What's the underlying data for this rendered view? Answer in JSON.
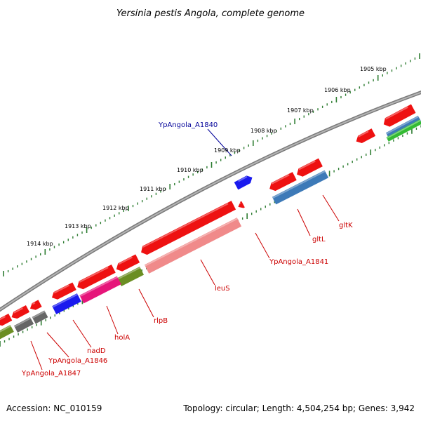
{
  "title": "Yersinia pestis Angola, complete genome",
  "footer": {
    "accession": "Accession: NC_010159",
    "summary": "Topology: circular; Length: 4,504,254 bp; Genes: 3,942"
  },
  "colors": {
    "backbone": "#8a8a8a",
    "tick": "#2e7d32",
    "label_reverse": "#cc0000",
    "label_forward": "#000099",
    "leader": "#cc0000"
  },
  "kbp_ticks": [
    "1905 kbp",
    "1906 kbp",
    "1907 kbp",
    "1908 kbp",
    "1909 kbp",
    "1910 kbp",
    "1911 kbp",
    "1912 kbp",
    "1913 kbp",
    "1914 kbp"
  ],
  "gene_labels": [
    {
      "text": "YpAngola_A1840",
      "strand": "forward"
    },
    {
      "text": "gltK",
      "strand": "reverse"
    },
    {
      "text": "gltL",
      "strand": "reverse"
    },
    {
      "text": "YpAngola_A1841",
      "strand": "reverse"
    },
    {
      "text": "leuS",
      "strand": "reverse"
    },
    {
      "text": "rlpB",
      "strand": "reverse"
    },
    {
      "text": "holA",
      "strand": "reverse"
    },
    {
      "text": "nadD",
      "strand": "reverse"
    },
    {
      "text": "YpAngola_A1846",
      "strand": "reverse"
    },
    {
      "text": "YpAngola_A1847",
      "strand": "reverse"
    }
  ],
  "feature_colors": {
    "cds": "#ee1111",
    "forward_cds": "#1a1aee",
    "leuS": "#f08a8a",
    "gltL": "#3d7ab8",
    "rlpB": "#6b8e23",
    "holA": "#e6157a",
    "nadD": "#1a1aee",
    "gray": "#666666",
    "green": "#33bb33"
  }
}
